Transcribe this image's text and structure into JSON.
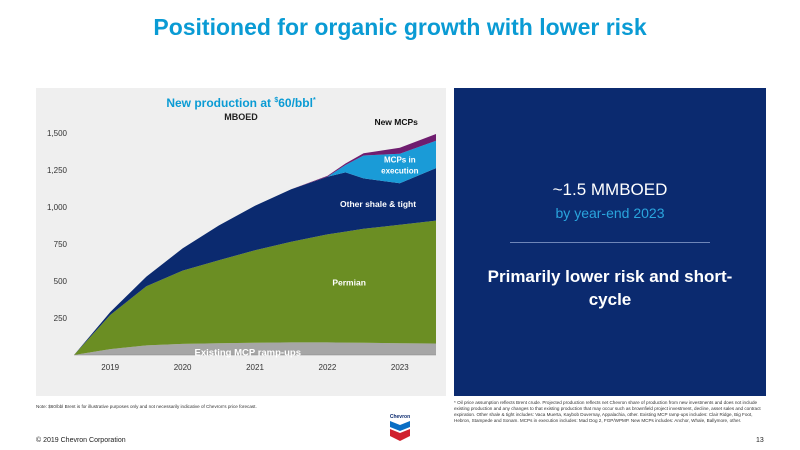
{
  "slide": {
    "title": "Positioned for organic growth with lower risk",
    "copyright": "© 2019 Chevron Corporation",
    "page_number": "13",
    "logo_text": "Chevron"
  },
  "callout": {
    "headline": "~1.5 MMBOED",
    "subline": "by year-end 2023",
    "statement": "Primarily lower risk and short-cycle"
  },
  "notes": {
    "left": "Note: $60/bbl Brent is for illustrative purposes only and not necessarily indicative of Chevron's price forecast.",
    "right": "* Oil price assumption reflects Brent crude. Projected production reflects net Chevron share of production from new investments and does not include existing production and any changes to that existing production that may occur such as brownfield project investment, decline, asset sales and contract expiration. Other shale & tight includes: Vaca Muerta, Kaybob Duvernay, Appalachia, other. Existing MCP ramp-ups includes: Clair Ridge, Big Foot, Hebron, Stampede and Sonam. MCPs in execution includes: Mad Dog 2, FGP/WPMP. New MCPs includes: Anchor, Whale, Ballymore, other."
  },
  "colors": {
    "title_blue": "#0a9bd4",
    "panel_navy": "#0b2a6f",
    "existing": "#a6a6a6",
    "permian": "#6b8e23",
    "other_shale": "#0b2a6f",
    "mcps_execution": "#1a9bd7",
    "new_mcps": "#6f1d6f"
  },
  "chart_data": {
    "type": "area",
    "stacked": true,
    "title": "New production at",
    "title_suffix": "60/bbl",
    "title_superscript_dollar": "$",
    "title_superscript_star": "*",
    "unit_label": "MBOED",
    "x": [
      2018.5,
      2019,
      2019.5,
      2020,
      2020.5,
      2021,
      2021.5,
      2022,
      2022.25,
      2022.5,
      2023,
      2023.5
    ],
    "x_tick_labels": [
      "2019",
      "2020",
      "2021",
      "2022",
      "2023"
    ],
    "x_tick_values": [
      2019,
      2020,
      2021,
      2022,
      2023
    ],
    "y_ticks": [
      250,
      500,
      750,
      1000,
      1250,
      1500
    ],
    "y_tick_labels": [
      "250",
      "500",
      "750",
      "1,000",
      "1,250",
      "1,500"
    ],
    "ylim": [
      0,
      1500
    ],
    "grid": false,
    "series": [
      {
        "name": "Existing MCP ramp-ups",
        "key": "existing",
        "values": [
          0,
          40,
          65,
          75,
          80,
          83,
          85,
          85,
          84,
          83,
          80,
          78
        ]
      },
      {
        "name": "Permian",
        "key": "permian",
        "values": [
          0,
          230,
          400,
          495,
          560,
          625,
          680,
          730,
          750,
          770,
          800,
          830
        ]
      },
      {
        "name": "Other shale & tight",
        "key": "other_shale",
        "values": [
          0,
          20,
          65,
          150,
          235,
          300,
          355,
          390,
          400,
          340,
          280,
          355
        ]
      },
      {
        "name": "MCPs in execution",
        "key": "mcps_execution",
        "values": [
          0,
          0,
          0,
          0,
          0,
          0,
          0,
          0,
          50,
          155,
          200,
          185
        ]
      },
      {
        "name": "New MCPs",
        "key": "new_mcps",
        "values": [
          0,
          0,
          0,
          0,
          0,
          0,
          0,
          5,
          10,
          15,
          40,
          45
        ]
      }
    ]
  }
}
